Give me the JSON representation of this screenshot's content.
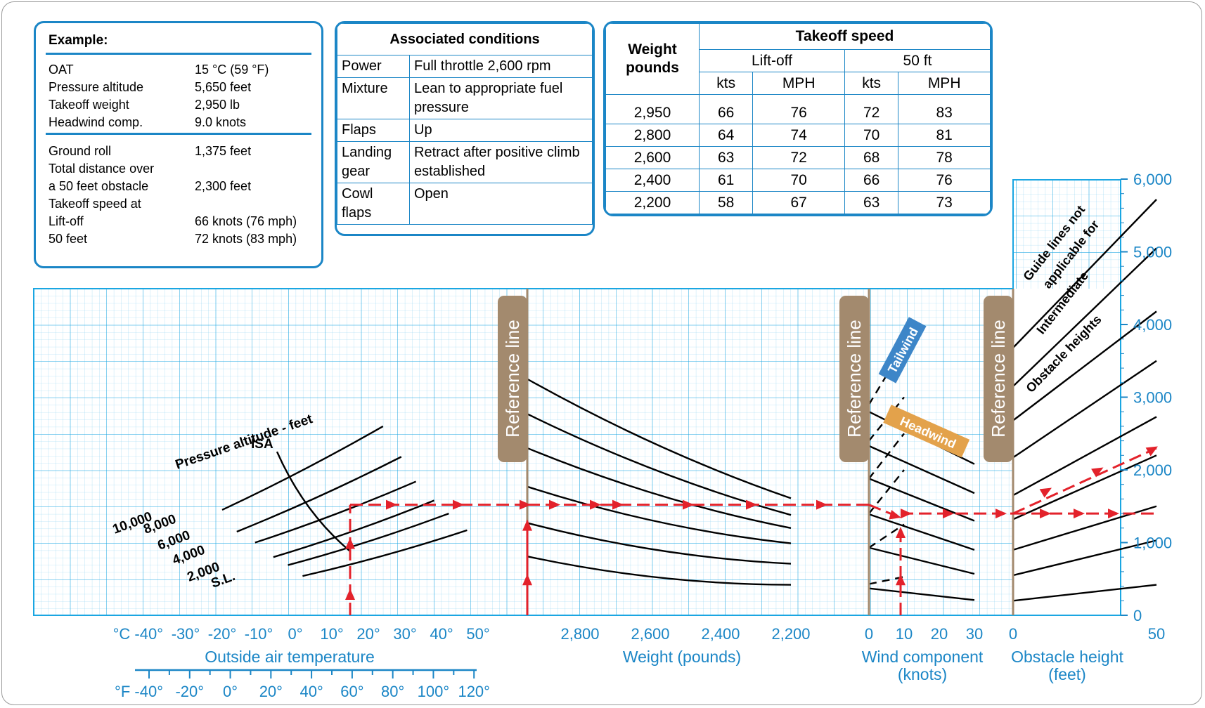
{
  "example": {
    "title": "Example:",
    "inputs": [
      {
        "label": "OAT",
        "value": "15 °C (59 °F)"
      },
      {
        "label": "Pressure altitude",
        "value": "5,650 feet"
      },
      {
        "label": "Takeoff weight",
        "value": "2,950 lb"
      },
      {
        "label": "Headwind comp.",
        "value": "9.0 knots"
      }
    ],
    "results": [
      {
        "label": "Ground roll",
        "value": "1,375 feet"
      },
      {
        "label": "Total distance over",
        "value": ""
      },
      {
        "label": "a 50 feet obstacle",
        "value": "2,300 feet"
      },
      {
        "label": "Takeoff speed at",
        "value": ""
      },
      {
        "label": "Lift-off",
        "value": "66 knots (76 mph)"
      },
      {
        "label": "50 feet",
        "value": "72 knots (83 mph)"
      }
    ]
  },
  "conditions": {
    "title": "Associated conditions",
    "rows": [
      {
        "item": "Power",
        "value": "Full throttle 2,600 rpm"
      },
      {
        "item": "Mixture",
        "value": "Lean to appropriate fuel pressure"
      },
      {
        "item": "Flaps",
        "value": "Up"
      },
      {
        "item": "Landing gear",
        "value": "Retract after positive climb established"
      },
      {
        "item": "Cowl flaps",
        "value": "Open"
      }
    ]
  },
  "speed_table": {
    "weight_header": "Weight pounds",
    "title": "Takeoff speed",
    "liftoff": "Lift-off",
    "fifty_ft": "50 ft",
    "kts": "kts",
    "mph": "MPH",
    "rows": [
      {
        "weight": "2,950",
        "lo_kts": "66",
        "lo_mph": "76",
        "ft_kts": "72",
        "ft_mph": "83"
      },
      {
        "weight": "2,800",
        "lo_kts": "64",
        "lo_mph": "74",
        "ft_kts": "70",
        "ft_mph": "81"
      },
      {
        "weight": "2,600",
        "lo_kts": "63",
        "lo_mph": "72",
        "ft_kts": "68",
        "ft_mph": "78"
      },
      {
        "weight": "2,400",
        "lo_kts": "61",
        "lo_mph": "70",
        "ft_kts": "66",
        "ft_mph": "76"
      },
      {
        "weight": "2,200",
        "lo_kts": "58",
        "lo_mph": "67",
        "ft_kts": "63",
        "ft_mph": "73"
      }
    ]
  },
  "chart_data": {
    "type": "line",
    "title": "",
    "ylim": [
      0,
      6000
    ],
    "y_ticks": [
      "0",
      "1,000",
      "2,000",
      "3,000",
      "4,000",
      "5,000",
      "6,000"
    ],
    "reference_line_label": "Reference line",
    "panels": {
      "temperature": {
        "xlabel": "Outside air temperature",
        "c_ticks": [
          "°C -40°",
          "-30°",
          "-20°",
          "-10°",
          "0°",
          "10°",
          "20°",
          "30°",
          "40°",
          "50°"
        ],
        "f_ticks": [
          "°F -40°",
          "-20°",
          "0°",
          "20°",
          "40°",
          "60°",
          "80°",
          "100°",
          "120°"
        ],
        "family_label": "Pressure altitude - feet",
        "isa_label": "ISA",
        "altitude_labels": [
          "10,000",
          "8,000",
          "6,000",
          "4,000",
          "2,000",
          "S.L."
        ],
        "series": [
          {
            "name": "10,000",
            "x": [
              -20,
              24
            ],
            "y": [
              1450,
              2600
            ]
          },
          {
            "name": "8,000",
            "x": [
              -16,
              29
            ],
            "y": [
              1150,
              2180
            ]
          },
          {
            "name": "6,000",
            "x": [
              -11,
              33
            ],
            "y": [
              1000,
              1840
            ]
          },
          {
            "name": "4,000",
            "x": [
              -6,
              38
            ],
            "y": [
              800,
              1580
            ]
          },
          {
            "name": "2,000",
            "x": [
              -2,
              42
            ],
            "y": [
              690,
              1400
            ]
          },
          {
            "name": "S.L.",
            "x": [
              2,
              47
            ],
            "y": [
              540,
              1170
            ]
          },
          {
            "name": "ISA",
            "x": [
              -5,
              15
            ],
            "y": [
              2250,
              880
            ]
          }
        ]
      },
      "weight": {
        "xlabel": "Weight (pounds)",
        "x_ticks": [
          "2,800",
          "2,600",
          "2,400",
          "2,200"
        ],
        "guide_lines": [
          {
            "x": [
              2950,
              2200
            ],
            "y": [
              3250,
              1610
            ]
          },
          {
            "x": [
              2950,
              2200
            ],
            "y": [
              2770,
              1380
            ]
          },
          {
            "x": [
              2950,
              2200
            ],
            "y": [
              2300,
              1200
            ]
          },
          {
            "x": [
              2950,
              2200
            ],
            "y": [
              1770,
              990
            ]
          },
          {
            "x": [
              2950,
              2200
            ],
            "y": [
              1270,
              710
            ]
          },
          {
            "x": [
              2950,
              2200
            ],
            "y": [
              810,
              420
            ]
          }
        ]
      },
      "wind": {
        "xlabel": "Wind component (knots)",
        "x_ticks": [
          "0",
          "10",
          "20",
          "30"
        ],
        "headwind_label": "Headwind",
        "tailwind_label": "Tailwind",
        "headwind_lines": [
          {
            "x": [
              0,
              30
            ],
            "y": [
              2800,
              2080
            ]
          },
          {
            "x": [
              0,
              30
            ],
            "y": [
              2330,
              1680
            ]
          },
          {
            "x": [
              0,
              30
            ],
            "y": [
              1880,
              1300
            ]
          },
          {
            "x": [
              0,
              30
            ],
            "y": [
              1390,
              900
            ]
          },
          {
            "x": [
              0,
              30
            ],
            "y": [
              930,
              570
            ]
          },
          {
            "x": [
              0,
              30
            ],
            "y": [
              370,
              210
            ]
          }
        ],
        "tailwind_lines": [
          {
            "x": [
              0,
              10
            ],
            "y": [
              2900,
              3700
            ]
          },
          {
            "x": [
              0,
              10
            ],
            "y": [
              2400,
              3000
            ]
          },
          {
            "x": [
              0,
              10
            ],
            "y": [
              1880,
              2500
            ]
          },
          {
            "x": [
              0,
              10
            ],
            "y": [
              1400,
              2000
            ]
          },
          {
            "x": [
              0,
              10
            ],
            "y": [
              930,
              1250
            ]
          },
          {
            "x": [
              0,
              10
            ],
            "y": [
              430,
              530
            ]
          }
        ]
      },
      "obstacle": {
        "xlabel": "Obstacle height (feet)",
        "x_ticks": [
          "0",
          "50"
        ],
        "notes": [
          "Guide lines not",
          "applicable for",
          "Intermediate",
          "Obstacle heights"
        ],
        "guide_lines": [
          {
            "x": [
              0,
              50
            ],
            "y": [
              3680,
              5720
            ]
          },
          {
            "x": [
              0,
              50
            ],
            "y": [
              3150,
              5050
            ]
          },
          {
            "x": [
              0,
              50
            ],
            "y": [
              2680,
              4180
            ]
          },
          {
            "x": [
              0,
              50
            ],
            "y": [
              2170,
              3500
            ]
          },
          {
            "x": [
              0,
              50
            ],
            "y": [
              1650,
              2730
            ]
          },
          {
            "x": [
              0,
              50
            ],
            "y": [
              1320,
              2200
            ]
          },
          {
            "x": [
              0,
              50
            ],
            "y": [
              900,
              1500
            ]
          },
          {
            "x": [
              0,
              50
            ],
            "y": [
              550,
              1030
            ]
          },
          {
            "x": [
              0,
              50
            ],
            "y": [
              200,
              420
            ]
          }
        ]
      }
    },
    "example_path": {
      "oat_c": 15,
      "pressure_altitude_ft": 5650,
      "weight_lb": 2950,
      "headwind_kts": 9,
      "ground_roll_ft": 1375,
      "total_distance_ft": 2300
    },
    "colors": {
      "grid": "#1aa6e2",
      "accent": "#1b86c6",
      "path": "#e3222b",
      "ref": "#a38a6e",
      "headwind": "#e3a24b",
      "tailwind": "#3d86c8"
    }
  }
}
